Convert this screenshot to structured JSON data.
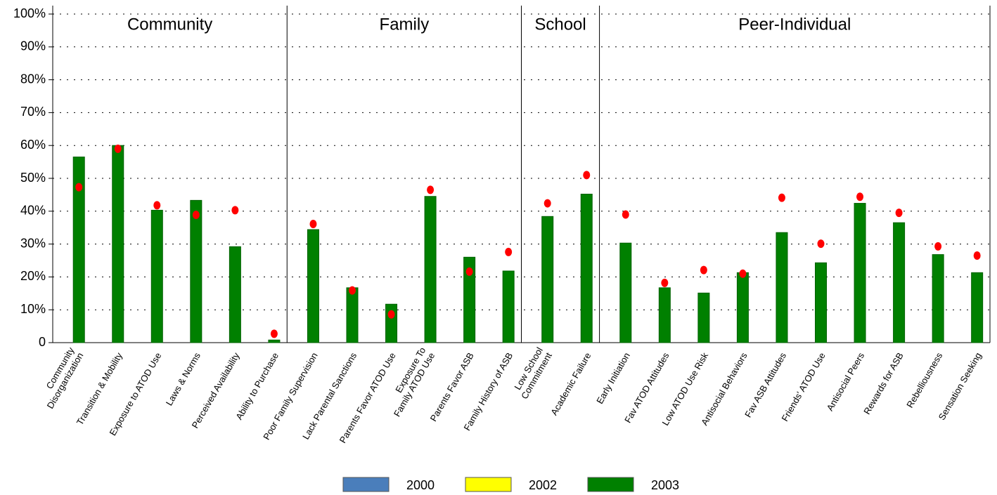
{
  "chart_data": {
    "type": "bar",
    "categories": [
      "Community\nDisorganization",
      "Transition & Mobility",
      "Exposure to ATOD Use",
      "Laws & Norms",
      "Perceived Availability",
      "Ability to Purchase",
      "Poor Family Supervision",
      "Lack Parental Sanctions",
      "Parents Favor ATOD Use",
      "Exposure To\nFamily ATOD Use",
      "Parents Favor ASB",
      "Family History of ASB",
      "Low School\nCommitment",
      "Academic Failure",
      "Early Initiation",
      "Fav ATOD Attitudes",
      "Low ATOD Use Risk",
      "Antisocial Behaviors",
      "Fav ASB Attitudes",
      "Friends' ATOD Use",
      "Antisocial Peers",
      "Rewards for ASB",
      "Rebelliousness",
      "Sensation Seeking"
    ],
    "groups": [
      {
        "label": "Community",
        "count": 6
      },
      {
        "label": "Family",
        "count": 6
      },
      {
        "label": "School",
        "count": 2
      },
      {
        "label": "Peer-Individual",
        "count": 10
      }
    ],
    "series": [
      {
        "name": "2000",
        "color": "#4a7ebb",
        "values": [
          null,
          null,
          null,
          null,
          null,
          null,
          null,
          null,
          null,
          null,
          null,
          null,
          null,
          null,
          null,
          null,
          null,
          null,
          null,
          null,
          null,
          null,
          null,
          null
        ]
      },
      {
        "name": "2002",
        "color": "#ffff00",
        "values": [
          null,
          null,
          null,
          null,
          null,
          null,
          null,
          null,
          null,
          null,
          null,
          null,
          null,
          null,
          null,
          null,
          null,
          null,
          null,
          null,
          null,
          null,
          null,
          null
        ]
      },
      {
        "name": "2003",
        "color": "#008000",
        "values": [
          56.5,
          60,
          40.3,
          43.3,
          29.2,
          0.8,
          34.4,
          16.7,
          11.7,
          44.5,
          26,
          21.8,
          38.4,
          45.2,
          30.3,
          16.7,
          15.1,
          21.3,
          33.5,
          24.3,
          42.4,
          36.5,
          26.8,
          21.3
        ]
      }
    ],
    "points": {
      "color": "#ff0000",
      "values": [
        47.3,
        59,
        41.8,
        38.9,
        40.3,
        2.7,
        36.1,
        15.9,
        8.6,
        46.5,
        21.6,
        27.6,
        42.4,
        51,
        39,
        18.2,
        22.1,
        21,
        44.1,
        30.1,
        44.4,
        39.5,
        29.3,
        26.5
      ]
    },
    "ylim": [
      0,
      100
    ],
    "yticks": [
      0,
      {
        "value": 10,
        "label": "10%"
      },
      {
        "value": 20,
        "label": "20%"
      },
      {
        "value": 30,
        "label": "30%"
      },
      {
        "value": 40,
        "label": "40%"
      },
      {
        "value": 50,
        "label": "50%"
      },
      {
        "value": 60,
        "label": "60%"
      },
      {
        "value": 70,
        "label": "70%"
      },
      {
        "value": 80,
        "label": "80%"
      },
      {
        "value": 90,
        "label": "90%"
      },
      {
        "value": 100,
        "label": "100%"
      }
    ],
    "grid": true
  }
}
